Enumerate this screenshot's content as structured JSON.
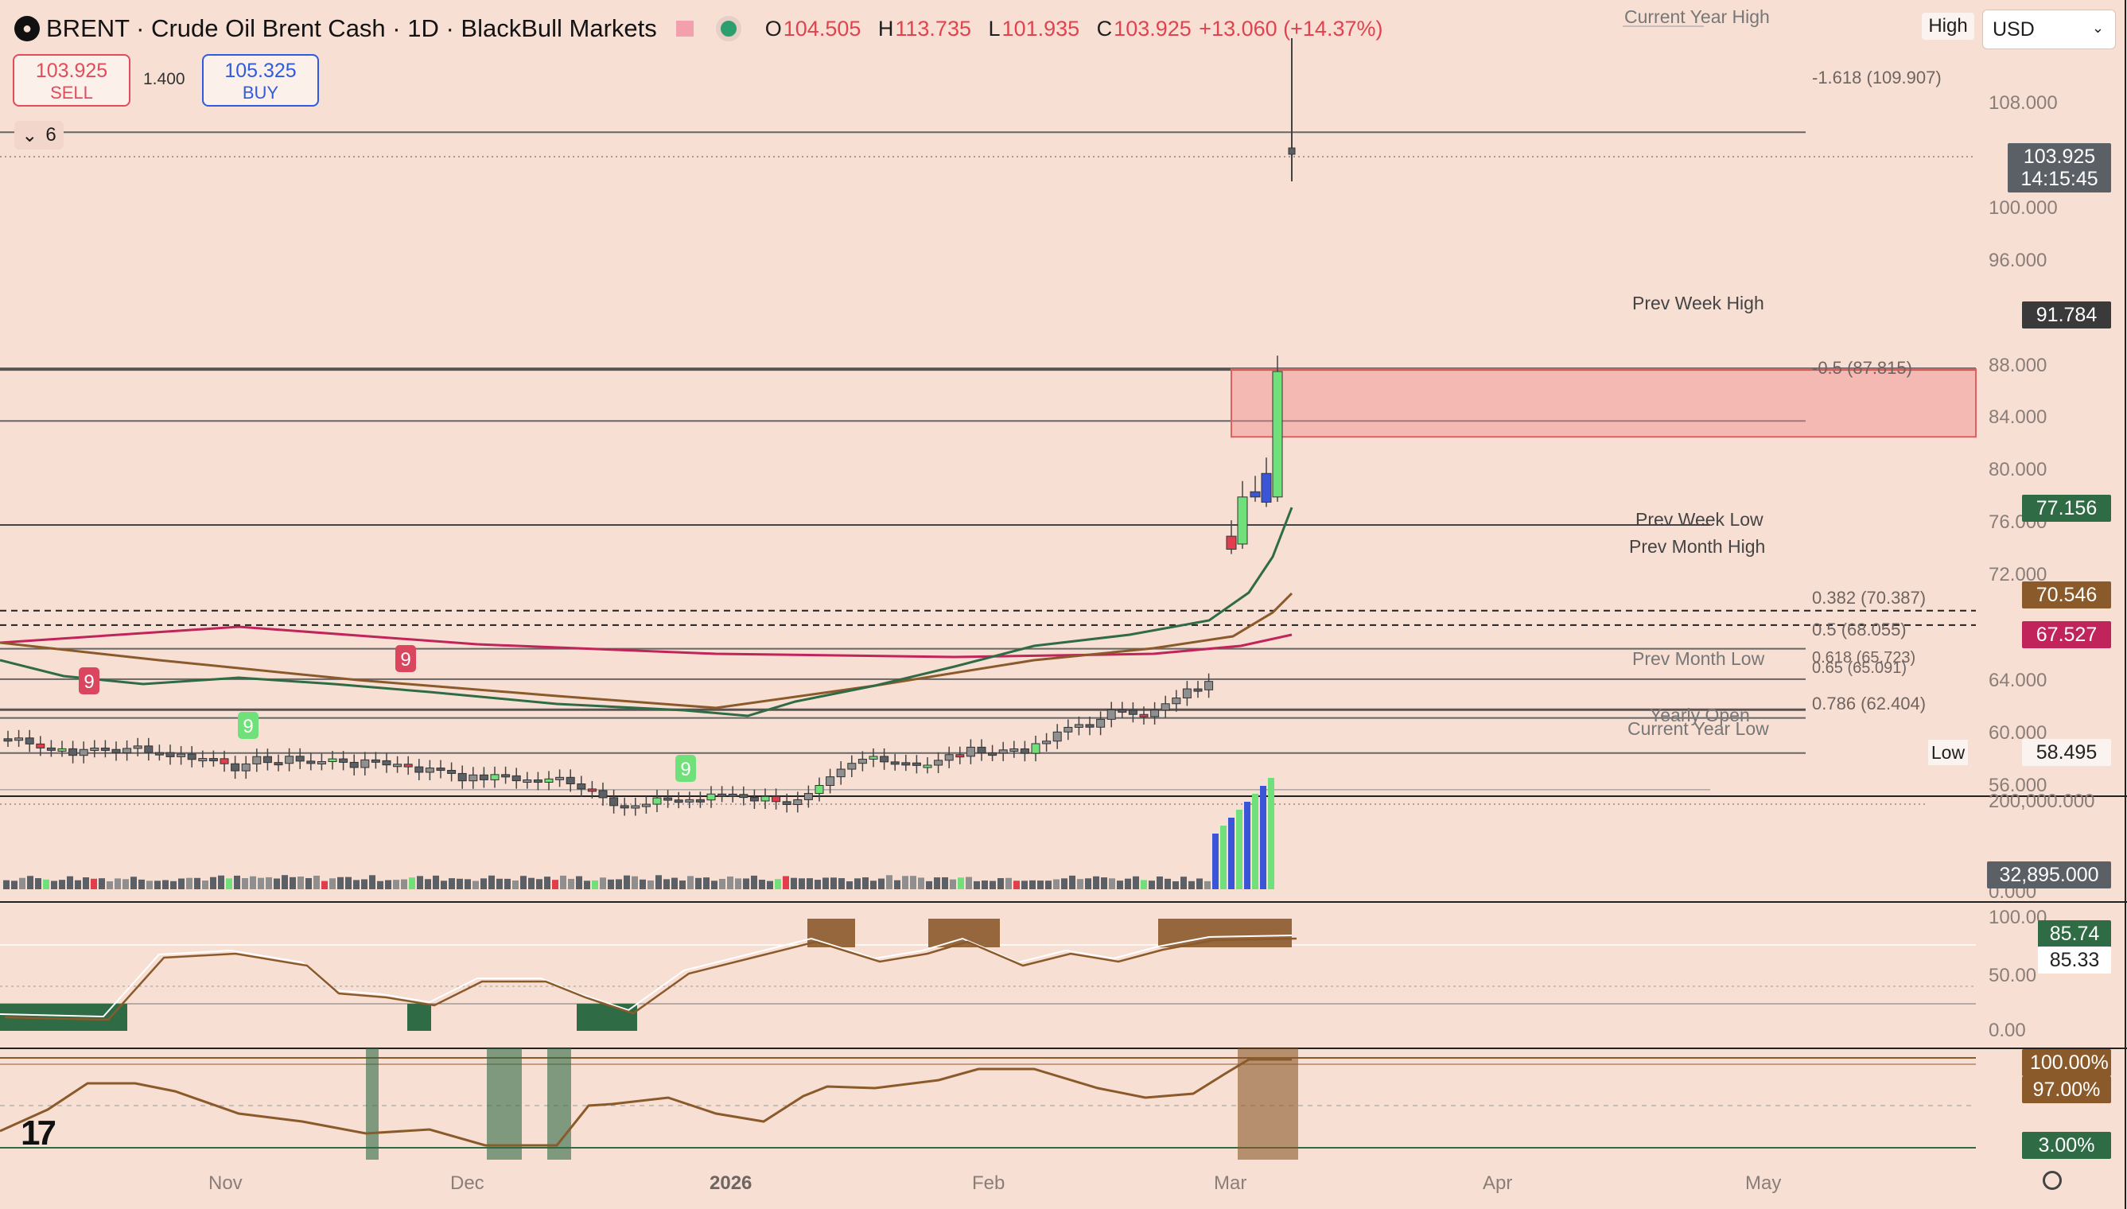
{
  "header": {
    "symbol": "BRENT",
    "description": "Crude Oil Brent Cash",
    "interval": "1D",
    "broker": "BlackBull Markets",
    "title": "BRENT · Crude Oil Brent Cash · 1D · BlackBull Markets",
    "ohlc": {
      "o_label": "O",
      "o": "104.505",
      "h_label": "H",
      "h": "113.735",
      "l_label": "L",
      "l": "101.935",
      "c_label": "C",
      "c": "103.925",
      "change": "+13.060 (+14.37%)"
    }
  },
  "trade": {
    "sell_price": "103.925",
    "sell_label": "SELL",
    "buy_price": "105.325",
    "buy_label": "BUY",
    "spread": "1.400"
  },
  "indicators_toggle": {
    "count": "6"
  },
  "currency": {
    "selected": "USD"
  },
  "high_label": "High",
  "low_label": "Low",
  "price_axis": {
    "ticks": [
      "108.000",
      "100.000",
      "96.000",
      "88.000",
      "84.000",
      "80.000",
      "76.000",
      "72.000",
      "64.000",
      "60.000",
      "56.000"
    ],
    "ticks_shown": [
      "108.000",
      "100.000",
      "96.000",
      "88.000",
      "84.000",
      "80.000",
      "64.000",
      "60.000",
      "56.000"
    ],
    "labels": {
      "current_price": "103.925",
      "countdown": "14:15:45",
      "prev_week_high": "91.784",
      "ema_green": "77.156",
      "ema_brown": "70.546",
      "ema_red": "67.527",
      "low": "58.495"
    }
  },
  "levels": {
    "current_year_high": "Current Year High",
    "prev_week_high": "Prev Week High",
    "prev_week_low": "Prev Week Low",
    "prev_month_high": "Prev Month High",
    "prev_month_low": "Prev Month Low",
    "yearly_open": "Yearly Open",
    "current_year_low": "Current Year Low",
    "fib_1618": "-1.618 (109.907)",
    "fib_05neg": "-0.5 (87.815)",
    "fib_0382": "0.382 (70.387)",
    "fib_05": "0.5 (68.055)",
    "fib_0618": "0.618 (65.723)",
    "fib_065": "0.65 (65.091)",
    "fib_0786": "0.786 (62.404)"
  },
  "markers": {
    "nine_a": "9",
    "nine_b": "9",
    "nine_c": "9",
    "nine_d": "9"
  },
  "volume": {
    "axis_top": "200,000.000",
    "axis_bottom": "0.000",
    "label": "32,895.000"
  },
  "stoch": {
    "k": "85.74",
    "d": "85.33",
    "axis_top": "100.00",
    "axis_mid": "50.00",
    "axis_bottom": "0.00"
  },
  "percent_osc": {
    "top": "100.00%",
    "upper": "97.00%",
    "lower": "3.00%"
  },
  "time_axis": {
    "labels": [
      "Nov",
      "Dec",
      "2026",
      "Feb",
      "Mar",
      "Apr",
      "May"
    ]
  },
  "colors": {
    "background": "#f8dfd4",
    "up": "#6fe07a",
    "down": "#e13d4d",
    "neutral": "#8f8f8f",
    "ema_green": "#2f6b45",
    "ema_brown": "#8b5a2b",
    "ema_red": "#c0245a",
    "zone": "#f08b8b"
  },
  "chart_data": {
    "type": "candlestick",
    "title": "BRENT · Crude Oil Brent Cash · 1D · BlackBull Markets",
    "x_ticks": [
      "Nov",
      "Dec",
      "2026",
      "Feb",
      "Mar",
      "Apr",
      "May"
    ],
    "y_ticks": [
      "108.000",
      "100.000",
      "96.000",
      "88.000",
      "84.000",
      "80.000",
      "64.000",
      "60.000",
      "56.000"
    ],
    "series": [
      {
        "name": "BRENT",
        "ohlc_latest": {
          "open": 104.505,
          "high": 113.735,
          "low": 101.935,
          "close": 103.925
        }
      }
    ]
  }
}
